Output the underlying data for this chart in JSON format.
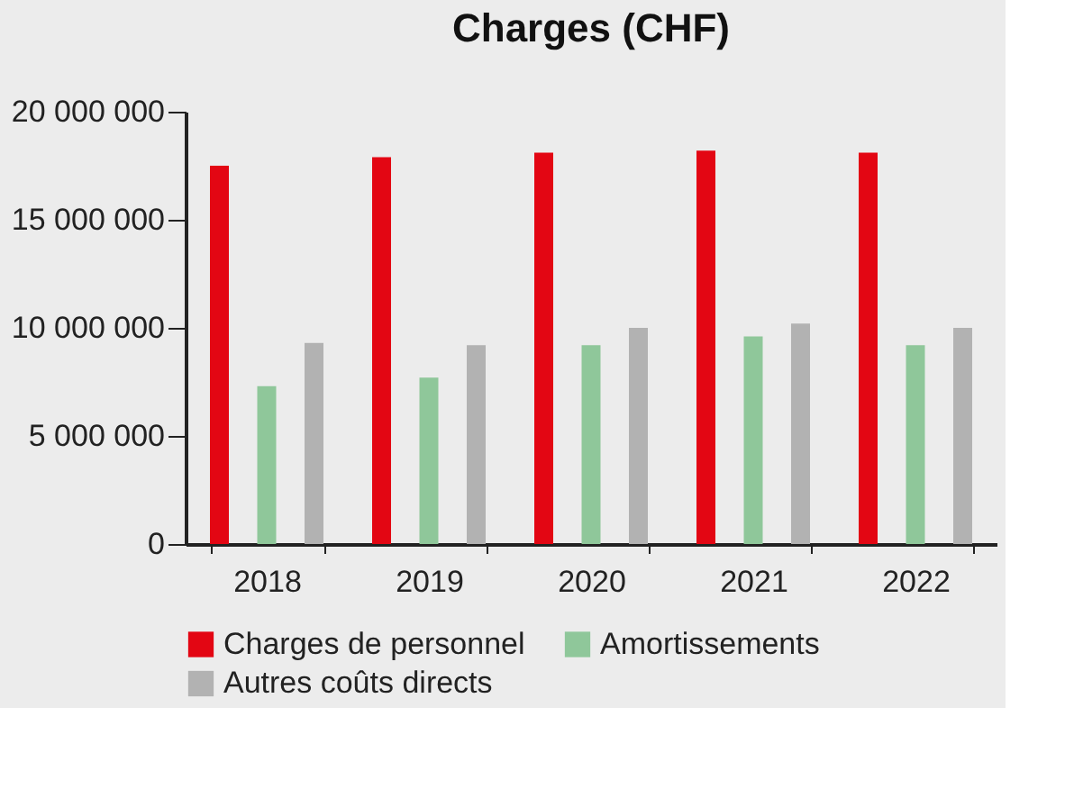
{
  "chart_data": {
    "type": "bar",
    "title": "Charges (CHF)",
    "categories": [
      "2018",
      "2019",
      "2020",
      "2021",
      "2022"
    ],
    "series": [
      {
        "name": "Charges de personnel",
        "color": "#e30613",
        "values": [
          17500000,
          17900000,
          18100000,
          18200000,
          18100000
        ]
      },
      {
        "name": "Amortissements",
        "color": "#8fc79a",
        "values": [
          7300000,
          7700000,
          9200000,
          9600000,
          9200000
        ]
      },
      {
        "name": "Autres coûts directs",
        "color": "#b2b2b2",
        "values": [
          9300000,
          9200000,
          10000000,
          10200000,
          10000000
        ]
      }
    ],
    "ylim": [
      0,
      20000000
    ],
    "yticks": [
      0,
      {
        "value": 5000000,
        "label": "5 000 000"
      },
      {
        "value": 10000000,
        "label": "10 000 000"
      },
      {
        "value": 15000000,
        "label": "15 000 000"
      },
      {
        "value": 20000000,
        "label": "20 000 000"
      }
    ],
    "grid": false,
    "legend": "bottom"
  }
}
